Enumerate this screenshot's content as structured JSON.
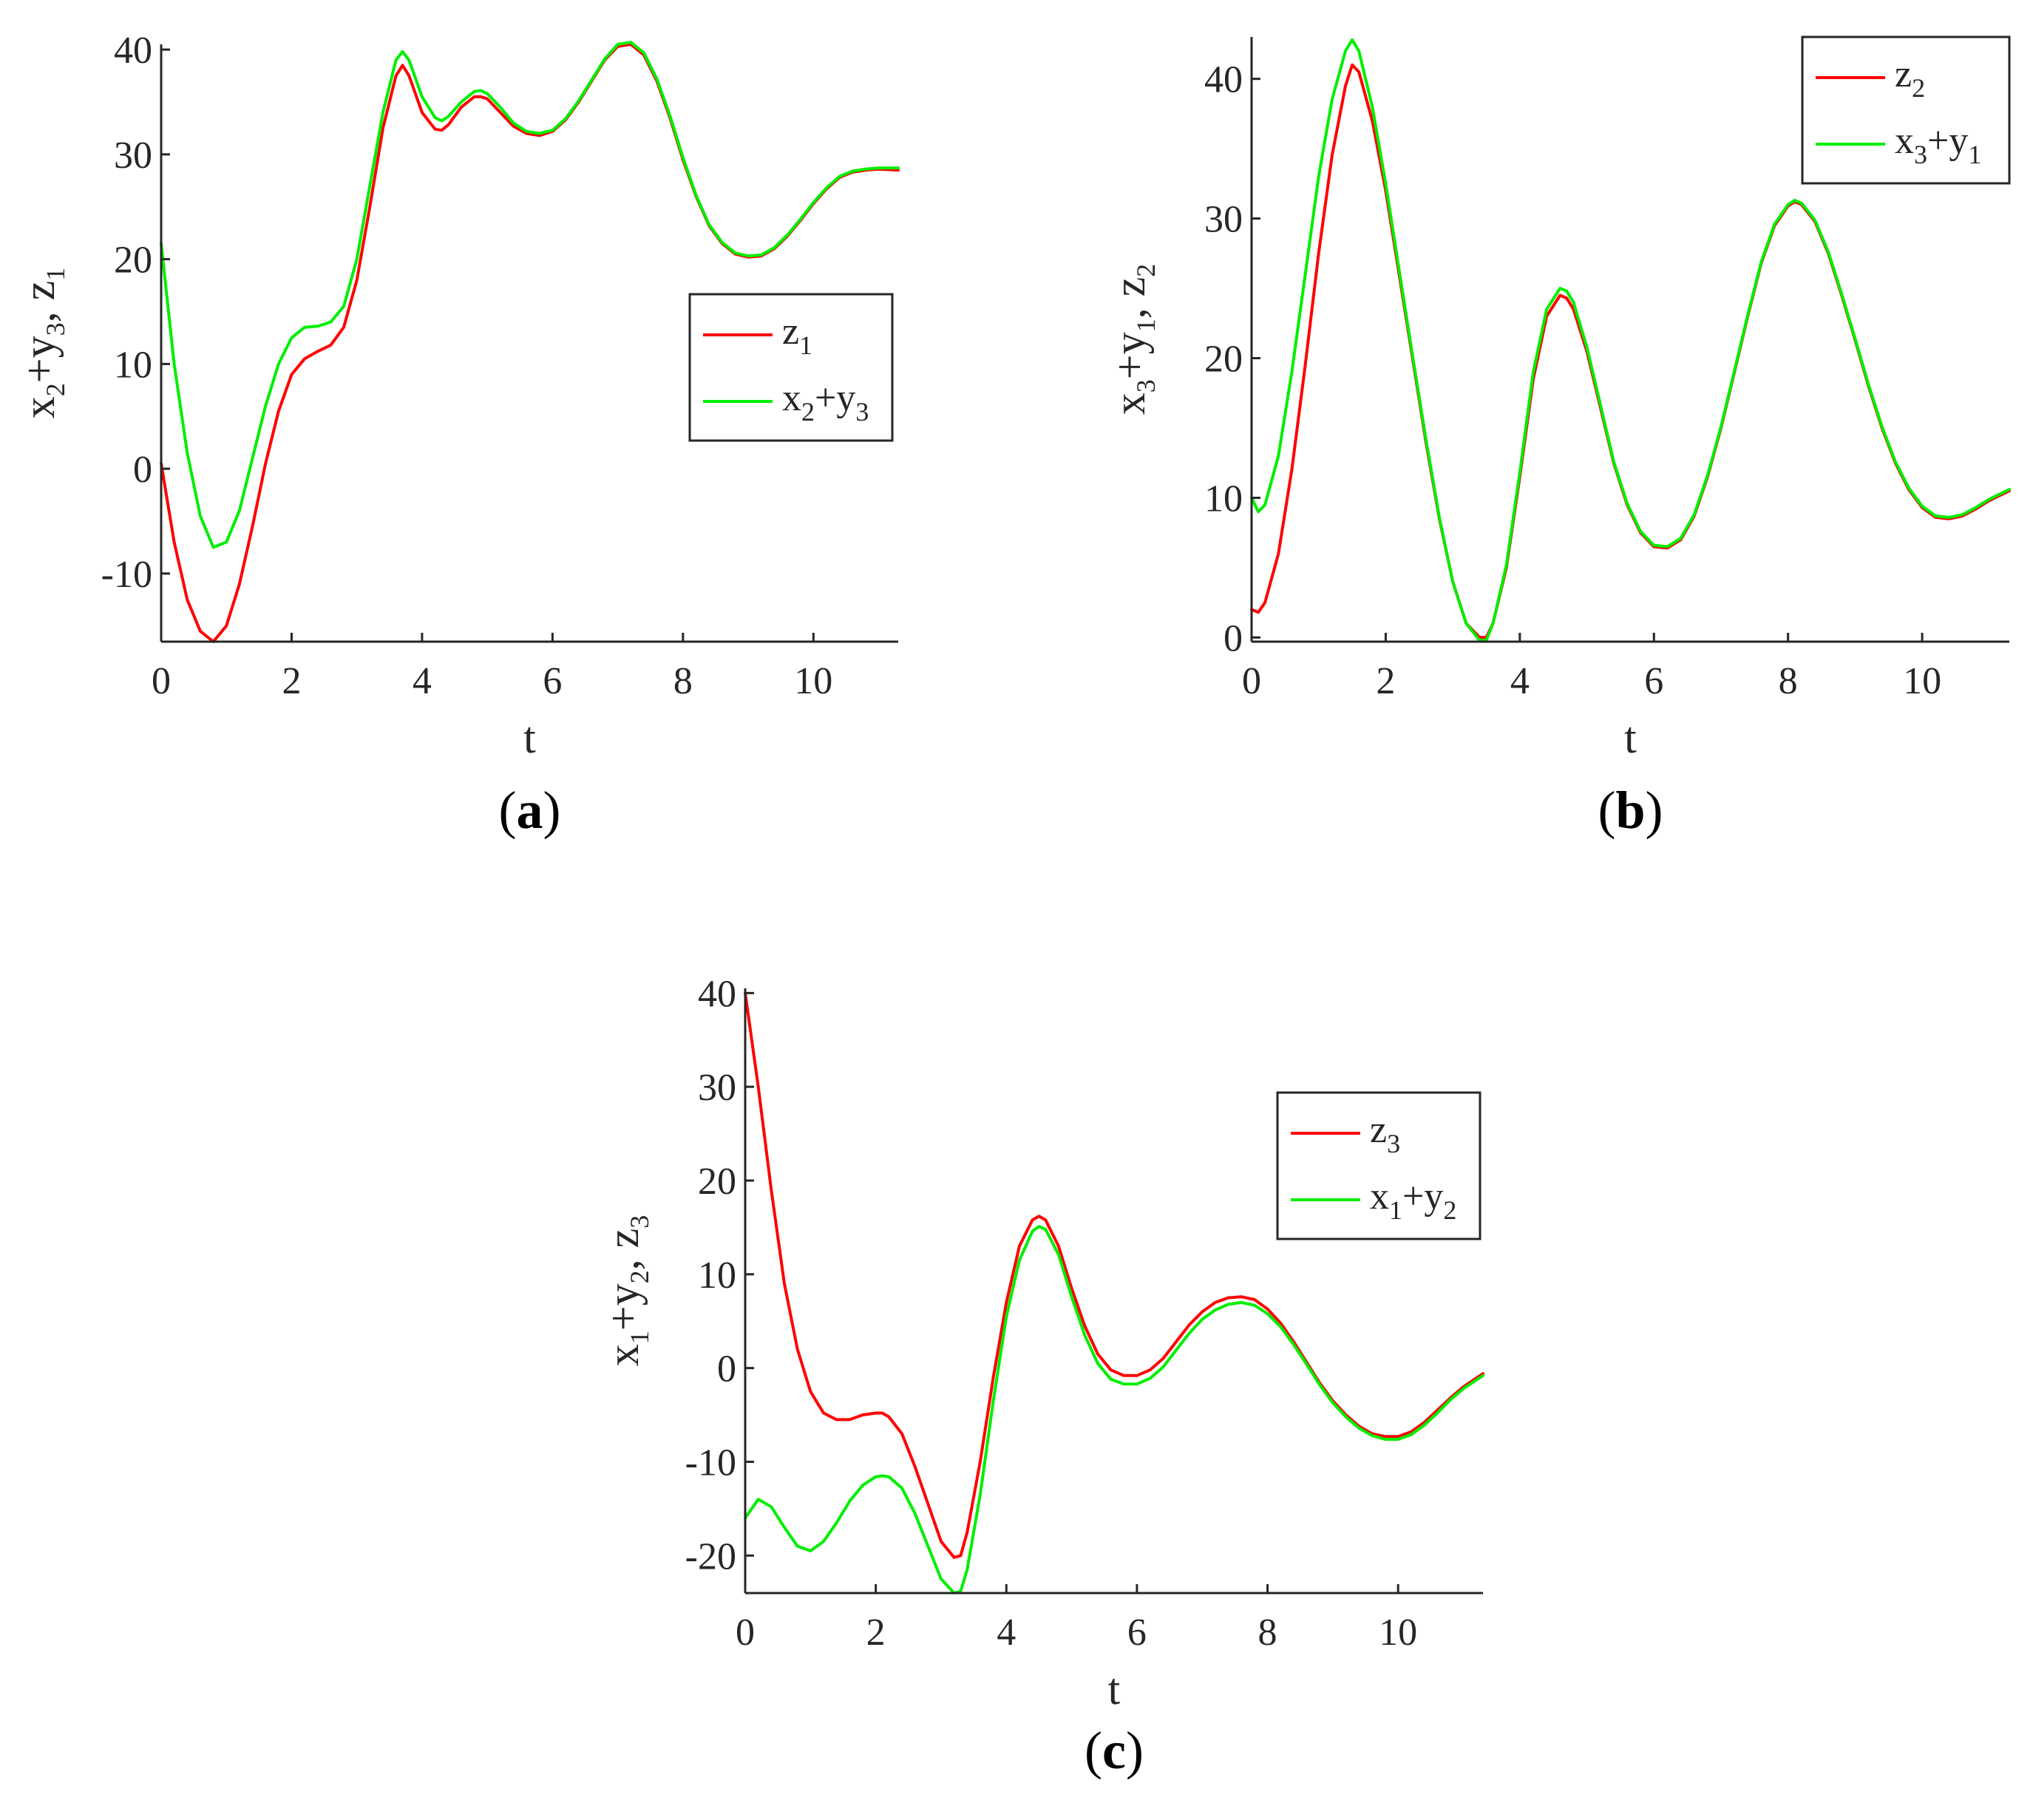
{
  "chart_data": [
    {
      "type": "line",
      "panel": "a",
      "caption": "(a)",
      "xlabel": "t",
      "ylabel": "x2+y3, z1",
      "xlim": [
        0,
        11.3
      ],
      "ylim": [
        -16.5,
        40.5
      ],
      "xticks": [
        0,
        2,
        4,
        6,
        8,
        10
      ],
      "yticks": [
        -10,
        0,
        10,
        20,
        30,
        40
      ],
      "legend_position": "middle-right",
      "series": [
        {
          "name": "z1",
          "color": "#ff0000",
          "x": [
            0,
            0.2,
            0.4,
            0.6,
            0.8,
            1.0,
            1.2,
            1.4,
            1.6,
            1.8,
            2.0,
            2.2,
            2.4,
            2.6,
            2.8,
            3.0,
            3.2,
            3.4,
            3.6,
            3.7,
            3.8,
            4.0,
            4.2,
            4.3,
            4.4,
            4.6,
            4.8,
            4.9,
            5.0,
            5.2,
            5.4,
            5.6,
            5.8,
            6.0,
            6.2,
            6.4,
            6.6,
            6.8,
            7.0,
            7.2,
            7.4,
            7.6,
            7.8,
            8.0,
            8.2,
            8.4,
            8.6,
            8.8,
            9.0,
            9.2,
            9.4,
            9.6,
            9.8,
            10.0,
            10.2,
            10.4,
            10.6,
            10.8,
            11.0,
            11.3
          ],
          "y": [
            0.5,
            -7,
            -12.5,
            -15.5,
            -16.5,
            -15,
            -11,
            -5.5,
            0.5,
            5.5,
            9,
            10.5,
            11.2,
            11.8,
            13.5,
            18,
            25,
            32.5,
            37.5,
            38.5,
            37.5,
            34,
            32.4,
            32.3,
            32.8,
            34.5,
            35.5,
            35.5,
            35.3,
            34,
            32.7,
            32,
            31.8,
            32.2,
            33.3,
            35,
            37,
            39,
            40.3,
            40.5,
            39.5,
            37,
            33.5,
            29.5,
            26,
            23.2,
            21.5,
            20.5,
            20.2,
            20.3,
            21,
            22.2,
            23.7,
            25.3,
            26.7,
            27.8,
            28.3,
            28.5,
            28.6,
            28.5
          ]
        },
        {
          "name": "x2+y3",
          "color": "#00ee00",
          "x": [
            0,
            0.2,
            0.4,
            0.6,
            0.8,
            1.0,
            1.2,
            1.4,
            1.6,
            1.8,
            2.0,
            2.2,
            2.4,
            2.6,
            2.8,
            3.0,
            3.2,
            3.4,
            3.6,
            3.7,
            3.8,
            4.0,
            4.2,
            4.3,
            4.4,
            4.6,
            4.8,
            4.9,
            5.0,
            5.2,
            5.4,
            5.6,
            5.8,
            6.0,
            6.2,
            6.4,
            6.6,
            6.8,
            7.0,
            7.2,
            7.4,
            7.6,
            7.8,
            8.0,
            8.2,
            8.4,
            8.6,
            8.8,
            9.0,
            9.2,
            9.4,
            9.6,
            9.8,
            10.0,
            10.2,
            10.4,
            10.6,
            10.8,
            11.0,
            11.3
          ],
          "y": [
            21.5,
            10,
            1.5,
            -4.5,
            -7.5,
            -7,
            -4,
            1,
            6,
            10,
            12.5,
            13.5,
            13.6,
            14,
            15.5,
            20,
            27,
            34,
            39,
            39.8,
            39,
            35.5,
            33.5,
            33.2,
            33.6,
            35,
            36,
            36.1,
            35.8,
            34.5,
            33,
            32.2,
            32,
            32.3,
            33.4,
            35.1,
            37.1,
            39.1,
            40.5,
            40.7,
            39.7,
            37.2,
            33.7,
            29.7,
            26.1,
            23.3,
            21.6,
            20.6,
            20.3,
            20.4,
            21.1,
            22.3,
            23.8,
            25.4,
            26.8,
            27.9,
            28.4,
            28.6,
            28.7,
            28.7
          ]
        }
      ]
    },
    {
      "type": "line",
      "panel": "b",
      "caption": "(b)",
      "xlabel": "t",
      "ylabel": "x3+y1, z2",
      "xlim": [
        0,
        11.3
      ],
      "ylim": [
        -0.3,
        43
      ],
      "xticks": [
        0,
        2,
        4,
        6,
        8,
        10
      ],
      "yticks": [
        0,
        10,
        20,
        30,
        40
      ],
      "legend_position": "top-right",
      "series": [
        {
          "name": "z2",
          "color": "#ff0000",
          "x": [
            0,
            0.1,
            0.2,
            0.4,
            0.6,
            0.8,
            1.0,
            1.2,
            1.4,
            1.5,
            1.6,
            1.8,
            2.0,
            2.2,
            2.4,
            2.6,
            2.8,
            3.0,
            3.2,
            3.4,
            3.5,
            3.6,
            3.8,
            4.0,
            4.2,
            4.4,
            4.6,
            4.7,
            4.8,
            5.0,
            5.2,
            5.4,
            5.6,
            5.8,
            6.0,
            6.2,
            6.4,
            6.6,
            6.8,
            7.0,
            7.2,
            7.4,
            7.6,
            7.8,
            8.0,
            8.1,
            8.2,
            8.4,
            8.6,
            8.8,
            9.0,
            9.2,
            9.4,
            9.6,
            9.8,
            10.0,
            10.2,
            10.4,
            10.6,
            10.8,
            11.0,
            11.3
          ],
          "y": [
            2,
            1.8,
            2.5,
            6,
            12,
            19.5,
            27.5,
            34.5,
            39.5,
            41,
            40.5,
            37,
            32,
            26,
            20,
            14,
            8.5,
            4,
            1,
            0,
            0,
            1,
            5,
            11.5,
            18.5,
            23,
            24.5,
            24.3,
            23.5,
            20.5,
            16.5,
            12.5,
            9.5,
            7.5,
            6.5,
            6.4,
            7,
            8.7,
            11.5,
            15,
            19,
            23,
            26.8,
            29.5,
            30.9,
            31.2,
            31,
            29.8,
            27.5,
            24.5,
            21.3,
            18,
            15,
            12.5,
            10.6,
            9.3,
            8.6,
            8.5,
            8.7,
            9.2,
            9.8,
            10.5
          ]
        },
        {
          "name": "x3+y1",
          "color": "#00ee00",
          "x": [
            0,
            0.1,
            0.2,
            0.4,
            0.6,
            0.8,
            1.0,
            1.2,
            1.4,
            1.5,
            1.6,
            1.8,
            2.0,
            2.2,
            2.4,
            2.6,
            2.8,
            3.0,
            3.2,
            3.4,
            3.5,
            3.6,
            3.8,
            4.0,
            4.2,
            4.4,
            4.6,
            4.7,
            4.8,
            5.0,
            5.2,
            5.4,
            5.6,
            5.8,
            6.0,
            6.2,
            6.4,
            6.6,
            6.8,
            7.0,
            7.2,
            7.4,
            7.6,
            7.8,
            8.0,
            8.1,
            8.2,
            8.4,
            8.6,
            8.8,
            9.0,
            9.2,
            9.4,
            9.6,
            9.8,
            10.0,
            10.2,
            10.4,
            10.6,
            10.8,
            11.0,
            11.3
          ],
          "y": [
            10,
            9,
            9.5,
            13,
            19,
            26,
            33,
            38.5,
            42,
            42.8,
            42,
            38,
            32.5,
            26.3,
            20.2,
            14.2,
            8.6,
            4,
            1,
            -0.2,
            -0.2,
            1,
            5.2,
            11.8,
            19,
            23.5,
            25,
            24.8,
            24,
            20.8,
            16.7,
            12.6,
            9.6,
            7.6,
            6.6,
            6.5,
            7.1,
            8.8,
            11.6,
            15.1,
            19.1,
            23.1,
            26.9,
            29.6,
            31,
            31.3,
            31.1,
            29.9,
            27.6,
            24.6,
            21.4,
            18.1,
            15.1,
            12.6,
            10.7,
            9.4,
            8.7,
            8.6,
            8.8,
            9.3,
            9.9,
            10.6
          ]
        }
      ]
    },
    {
      "type": "line",
      "panel": "c",
      "caption": "(c)",
      "xlabel": "t",
      "ylabel": "x1+y2, z3",
      "xlim": [
        0,
        11.3
      ],
      "ylim": [
        -24,
        40.5
      ],
      "xticks": [
        0,
        2,
        4,
        6,
        8,
        10
      ],
      "yticks": [
        -20,
        -10,
        0,
        10,
        20,
        30,
        40
      ],
      "legend_position": "top-right",
      "series": [
        {
          "name": "z3",
          "color": "#ff0000",
          "x": [
            0,
            0.2,
            0.4,
            0.6,
            0.8,
            1.0,
            1.2,
            1.4,
            1.6,
            1.8,
            2.0,
            2.1,
            2.2,
            2.4,
            2.6,
            2.8,
            3.0,
            3.2,
            3.3,
            3.4,
            3.6,
            3.8,
            4.0,
            4.2,
            4.4,
            4.5,
            4.6,
            4.8,
            5.0,
            5.2,
            5.4,
            5.6,
            5.8,
            6.0,
            6.2,
            6.4,
            6.6,
            6.8,
            7.0,
            7.2,
            7.4,
            7.6,
            7.8,
            8.0,
            8.2,
            8.4,
            8.6,
            8.8,
            9.0,
            9.2,
            9.4,
            9.6,
            9.8,
            10.0,
            10.2,
            10.4,
            10.6,
            10.8,
            11.0,
            11.3
          ],
          "y": [
            40,
            30,
            19,
            9,
            2,
            -2.5,
            -4.8,
            -5.5,
            -5.5,
            -5,
            -4.8,
            -4.8,
            -5.2,
            -7,
            -10.5,
            -14.5,
            -18.5,
            -20.2,
            -20,
            -17.5,
            -10,
            -1,
            7,
            13,
            15.8,
            16.2,
            15.8,
            13,
            8.5,
            4.5,
            1.5,
            -0.2,
            -0.8,
            -0.8,
            -0.2,
            1,
            2.8,
            4.6,
            6,
            7,
            7.5,
            7.6,
            7.3,
            6.3,
            4.8,
            2.8,
            0.6,
            -1.6,
            -3.5,
            -5,
            -6.2,
            -7,
            -7.3,
            -7.3,
            -6.8,
            -5.8,
            -4.5,
            -3.2,
            -2,
            -0.6
          ]
        },
        {
          "name": "x1+y2",
          "color": "#00ee00",
          "x": [
            0,
            0.2,
            0.4,
            0.6,
            0.8,
            1.0,
            1.2,
            1.4,
            1.6,
            1.8,
            2.0,
            2.1,
            2.2,
            2.4,
            2.6,
            2.8,
            3.0,
            3.2,
            3.3,
            3.4,
            3.6,
            3.8,
            4.0,
            4.2,
            4.4,
            4.5,
            4.6,
            4.8,
            5.0,
            5.2,
            5.4,
            5.6,
            5.8,
            6.0,
            6.2,
            6.4,
            6.6,
            6.8,
            7.0,
            7.2,
            7.4,
            7.6,
            7.8,
            8.0,
            8.2,
            8.4,
            8.6,
            8.8,
            9.0,
            9.2,
            9.4,
            9.6,
            9.8,
            10.0,
            10.2,
            10.4,
            10.6,
            10.8,
            11.0,
            11.3
          ],
          "y": [
            -16,
            -14,
            -14.8,
            -17,
            -19,
            -19.5,
            -18.5,
            -16.5,
            -14.2,
            -12.5,
            -11.6,
            -11.5,
            -11.6,
            -12.8,
            -15.5,
            -19,
            -22.5,
            -24,
            -23.8,
            -21.5,
            -13.5,
            -3.5,
            5.5,
            11.5,
            14.6,
            15.1,
            14.8,
            12.1,
            7.6,
            3.5,
            0.5,
            -1.2,
            -1.7,
            -1.7,
            -1.1,
            0.1,
            1.9,
            3.7,
            5.2,
            6.2,
            6.8,
            7,
            6.7,
            5.8,
            4.4,
            2.5,
            0.4,
            -1.8,
            -3.7,
            -5.2,
            -6.4,
            -7.2,
            -7.6,
            -7.6,
            -7.1,
            -6.1,
            -4.8,
            -3.4,
            -2.2,
            -0.8
          ]
        }
      ]
    }
  ]
}
